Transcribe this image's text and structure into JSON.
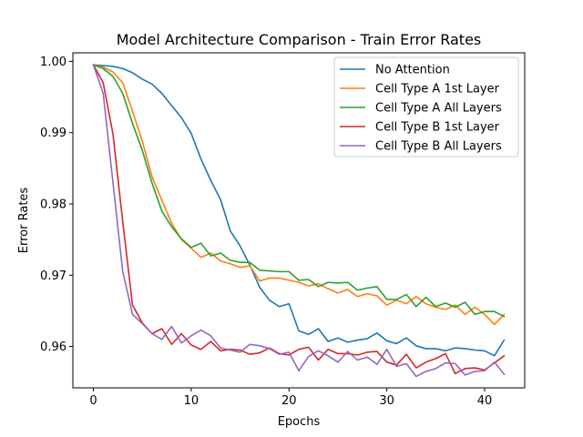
{
  "chart_data": {
    "type": "line",
    "title": "Model Architecture Comparison - Train Error Rates",
    "xlabel": "Epochs",
    "ylabel": "Error Rates",
    "xlim": [
      -2.1,
      44.1
    ],
    "ylim": [
      0.9542,
      1.0012
    ],
    "xticks": [
      0,
      10,
      20,
      30,
      40
    ],
    "yticks": [
      0.96,
      0.97,
      0.98,
      0.99,
      1.0
    ],
    "xtick_labels": [
      "0",
      "10",
      "20",
      "30",
      "40"
    ],
    "ytick_labels": [
      "0.96",
      "0.97",
      "0.98",
      "0.99",
      "1.00"
    ],
    "grid": false,
    "legend_position": "top-right",
    "x": [
      0,
      1,
      2,
      3,
      4,
      5,
      6,
      7,
      8,
      9,
      10,
      11,
      12,
      13,
      14,
      15,
      16,
      17,
      18,
      19,
      20,
      21,
      22,
      23,
      24,
      25,
      26,
      27,
      28,
      29,
      30,
      31,
      32,
      33,
      34,
      35,
      36,
      37,
      38,
      39,
      40,
      41,
      42
    ],
    "series": [
      {
        "name": "No Attention",
        "color": "#1f77b4",
        "values": [
          0.9995,
          0.9994,
          0.9993,
          0.999,
          0.9984,
          0.9975,
          0.9968,
          0.9955,
          0.9938,
          0.9921,
          0.9899,
          0.9863,
          0.9833,
          0.9806,
          0.9762,
          0.9741,
          0.9714,
          0.9683,
          0.9665,
          0.9656,
          0.966,
          0.9622,
          0.9617,
          0.9625,
          0.9607,
          0.9612,
          0.9606,
          0.9609,
          0.9611,
          0.9619,
          0.9608,
          0.9604,
          0.9612,
          0.9601,
          0.9597,
          0.9597,
          0.9594,
          0.9598,
          0.9597,
          0.9595,
          0.9594,
          0.9587,
          0.9609
        ]
      },
      {
        "name": "Cell Type A 1st Layer",
        "color": "#ff7f0e",
        "values": [
          0.9995,
          0.9992,
          0.9985,
          0.997,
          0.993,
          0.9888,
          0.9838,
          0.9805,
          0.9773,
          0.975,
          0.9738,
          0.9725,
          0.9731,
          0.972,
          0.9716,
          0.9711,
          0.9713,
          0.9692,
          0.9696,
          0.9696,
          0.9693,
          0.969,
          0.9685,
          0.9688,
          0.9681,
          0.9675,
          0.968,
          0.967,
          0.9674,
          0.9671,
          0.9658,
          0.9665,
          0.966,
          0.967,
          0.966,
          0.9655,
          0.9652,
          0.9658,
          0.9645,
          0.9655,
          0.9645,
          0.9631,
          0.9645
        ]
      },
      {
        "name": "Cell Type A All Layers",
        "color": "#2ca02c",
        "values": [
          0.9995,
          0.999,
          0.9979,
          0.9955,
          0.9913,
          0.9875,
          0.9829,
          0.979,
          0.9768,
          0.9751,
          0.9739,
          0.9745,
          0.9727,
          0.9731,
          0.9721,
          0.9718,
          0.9718,
          0.9707,
          0.9706,
          0.9705,
          0.9705,
          0.9693,
          0.9694,
          0.9684,
          0.969,
          0.9689,
          0.969,
          0.9679,
          0.9682,
          0.9684,
          0.9666,
          0.9666,
          0.9673,
          0.9656,
          0.9669,
          0.9656,
          0.9661,
          0.9655,
          0.9662,
          0.9645,
          0.9649,
          0.9649,
          0.9642
        ]
      },
      {
        "name": "Cell Type B 1st Layer",
        "color": "#d62728",
        "values": [
          0.9995,
          0.997,
          0.9898,
          0.9775,
          0.9658,
          0.9633,
          0.9618,
          0.9625,
          0.9603,
          0.9618,
          0.9602,
          0.9596,
          0.9607,
          0.9594,
          0.9596,
          0.9595,
          0.9589,
          0.9591,
          0.9598,
          0.959,
          0.9588,
          0.9596,
          0.9599,
          0.9581,
          0.9596,
          0.959,
          0.959,
          0.9588,
          0.9592,
          0.9593,
          0.9578,
          0.9574,
          0.9589,
          0.957,
          0.9578,
          0.9583,
          0.959,
          0.9562,
          0.9569,
          0.957,
          0.9567,
          0.9577,
          0.9587
        ]
      },
      {
        "name": "Cell Type B All Layers",
        "color": "#9467bd",
        "values": [
          0.9995,
          0.9955,
          0.983,
          0.9705,
          0.9645,
          0.9632,
          0.9618,
          0.961,
          0.9628,
          0.9605,
          0.9615,
          0.9623,
          0.9615,
          0.9598,
          0.9595,
          0.9592,
          0.9603,
          0.9601,
          0.9597,
          0.9589,
          0.9592,
          0.9566,
          0.9586,
          0.9594,
          0.9587,
          0.9578,
          0.9593,
          0.9581,
          0.9585,
          0.9575,
          0.9596,
          0.9572,
          0.9576,
          0.9558,
          0.9565,
          0.9569,
          0.9577,
          0.9576,
          0.956,
          0.9565,
          0.9566,
          0.9578,
          0.9561
        ]
      }
    ]
  }
}
